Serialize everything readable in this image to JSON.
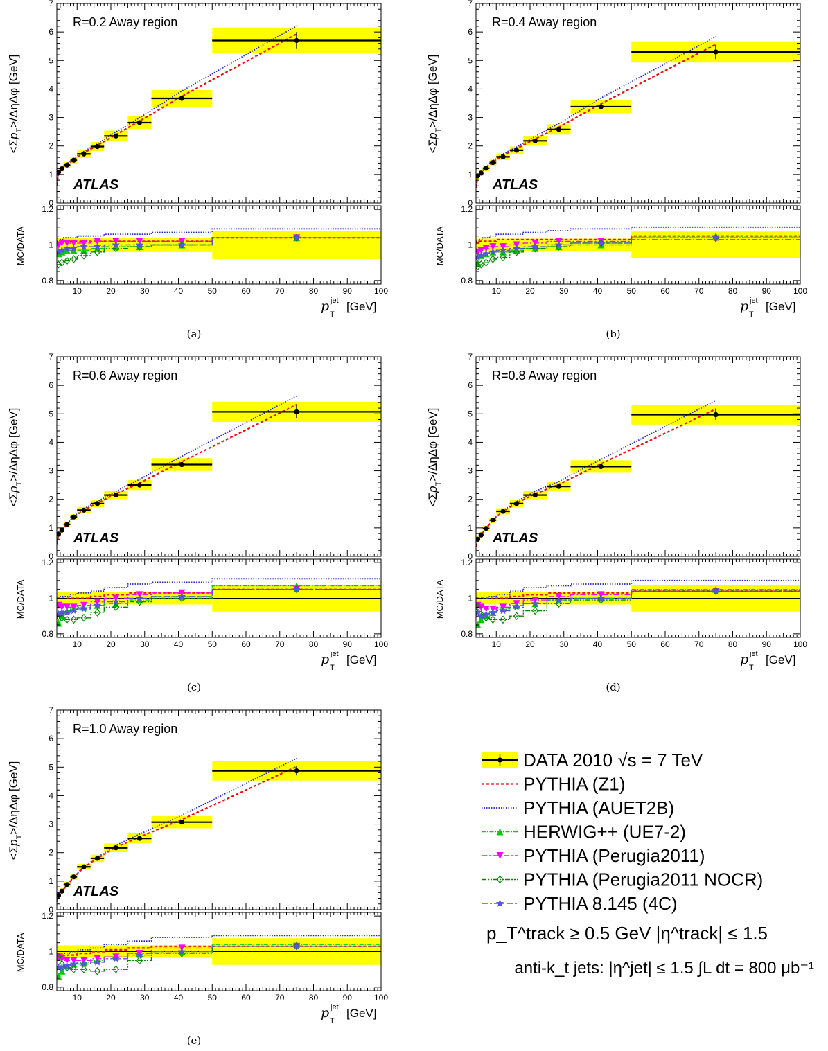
{
  "atlas_label": "ATLAS",
  "main_ylabel": "<Σp_T>/ΔηΔφ [GeV]",
  "ratio_ylabel": "MC/DATA",
  "xlabel": "p_T^jet [GeV]",
  "main_ticks": [
    "0",
    "1",
    "2",
    "3",
    "4",
    "5",
    "6",
    "7"
  ],
  "ratio_ticks": [
    "0.8",
    "1",
    "1.2"
  ],
  "x_ticks": [
    "10",
    "20",
    "30",
    "40",
    "50",
    "60",
    "70",
    "80",
    "90",
    "100"
  ],
  "colors": {
    "data": "#000000",
    "band": "#ffff00",
    "pythia_z1": "#ee1111",
    "pythia_auet2b": "#2222cc",
    "herwig": "#00cc00",
    "perugia2011": "#ff00ff",
    "perugia2011_nocr": "#008800",
    "pythia8_4c": "#5555dd"
  },
  "legend": {
    "entries": [
      {
        "key": "data",
        "label": "DATA  2010  √s = 7 TeV"
      },
      {
        "key": "pythia_z1",
        "label": "PYTHIA (Z1)"
      },
      {
        "key": "pythia_auet2b",
        "label": "PYTHIA (AUET2B)"
      },
      {
        "key": "herwig",
        "label": "HERWIG++ (UE7-2)"
      },
      {
        "key": "perugia2011",
        "label": "PYTHIA (Perugia2011)"
      },
      {
        "key": "perugia2011_nocr",
        "label": "PYTHIA (Perugia2011 NOCR)"
      },
      {
        "key": "pythia8_4c",
        "label": "PYTHIA 8.145 (4C)"
      }
    ],
    "cut1": "p_T^track ≥ 0.5 GeV   |η^track| ≤ 1.5",
    "cut2": "anti-k_t jets: |η^jet| ≤ 1.5   ∫L dt = 800 μb⁻¹"
  },
  "chart_data": [
    {
      "type": "scatter",
      "panel_label": "(a)",
      "title": "R=0.2   Away region",
      "xlim": [
        4,
        100
      ],
      "ylim": [
        0,
        7
      ],
      "ratio_ylim": [
        0.78,
        1.22
      ],
      "bins": [
        [
          4,
          5
        ],
        [
          5,
          6
        ],
        [
          6,
          8
        ],
        [
          8,
          10
        ],
        [
          10,
          14
        ],
        [
          14,
          18
        ],
        [
          18,
          25
        ],
        [
          25,
          32
        ],
        [
          32,
          50
        ],
        [
          50,
          100
        ]
      ],
      "series": [
        {
          "name": "DATA 2010",
          "x": [
            4.5,
            5.5,
            7,
            9,
            12,
            16,
            21.5,
            28.5,
            41,
            75
          ],
          "y": [
            1.08,
            1.2,
            1.33,
            1.5,
            1.72,
            1.98,
            2.35,
            2.82,
            3.67,
            5.7
          ],
          "err": [
            0.05,
            0.05,
            0.05,
            0.05,
            0.05,
            0.05,
            0.05,
            0.05,
            0.06,
            0.3
          ],
          "band_rel": 0.08
        },
        {
          "name": "PYTHIA (Z1)",
          "ratio": [
            1.01,
            1.02,
            1.02,
            1.02,
            1.02,
            1.02,
            1.02,
            1.02,
            1.02,
            1.04
          ]
        },
        {
          "name": "PYTHIA (AUET2B)",
          "ratio": [
            1.02,
            1.03,
            1.04,
            1.04,
            1.05,
            1.05,
            1.06,
            1.06,
            1.07,
            1.09
          ]
        },
        {
          "name": "HERWIG++ (UE7-2)",
          "ratio": [
            0.95,
            0.96,
            0.97,
            0.97,
            0.97,
            0.98,
            0.99,
            0.99,
            1.0,
            1.04
          ]
        },
        {
          "name": "PYTHIA (Perugia2011)",
          "ratio": [
            1.0,
            1.01,
            1.01,
            1.01,
            1.01,
            1.02,
            1.02,
            1.02,
            1.02,
            1.04
          ]
        },
        {
          "name": "PYTHIA (Perugia2011 NOCR)",
          "ratio": [
            0.89,
            0.9,
            0.91,
            0.92,
            0.94,
            0.96,
            0.98,
            0.99,
            1.0,
            1.04
          ]
        },
        {
          "name": "PYTHIA 8.145 (4C)",
          "ratio": [
            0.96,
            0.97,
            0.98,
            0.98,
            0.99,
            0.99,
            1.0,
            1.0,
            1.0,
            1.04
          ]
        }
      ]
    },
    {
      "type": "scatter",
      "panel_label": "(b)",
      "title": "R=0.4   Away region",
      "xlim": [
        4,
        100
      ],
      "ylim": [
        0,
        7
      ],
      "ratio_ylim": [
        0.78,
        1.22
      ],
      "bins": [
        [
          4,
          5
        ],
        [
          5,
          6
        ],
        [
          6,
          8
        ],
        [
          8,
          10
        ],
        [
          10,
          14
        ],
        [
          14,
          18
        ],
        [
          18,
          25
        ],
        [
          25,
          32
        ],
        [
          32,
          50
        ],
        [
          50,
          100
        ]
      ],
      "series": [
        {
          "name": "DATA 2010",
          "x": [
            4.5,
            5.5,
            7,
            9,
            12,
            16,
            21.5,
            28.5,
            41,
            75
          ],
          "y": [
            0.95,
            1.05,
            1.22,
            1.42,
            1.62,
            1.85,
            2.18,
            2.58,
            3.38,
            5.3
          ],
          "err": [
            0.05,
            0.05,
            0.05,
            0.05,
            0.05,
            0.05,
            0.05,
            0.05,
            0.06,
            0.25
          ],
          "band_rel": 0.07
        },
        {
          "name": "PYTHIA (Z1)",
          "ratio": [
            1.01,
            1.02,
            1.02,
            1.02,
            1.03,
            1.03,
            1.03,
            1.03,
            1.03,
            1.05
          ]
        },
        {
          "name": "PYTHIA (AUET2B)",
          "ratio": [
            1.02,
            1.03,
            1.04,
            1.05,
            1.06,
            1.06,
            1.07,
            1.08,
            1.09,
            1.1
          ]
        },
        {
          "name": "HERWIG++ (UE7-2)",
          "ratio": [
            0.9,
            0.94,
            0.95,
            0.96,
            0.96,
            0.97,
            0.98,
            0.99,
            1.0,
            1.05
          ]
        },
        {
          "name": "PYTHIA (Perugia2011)",
          "ratio": [
            0.96,
            0.97,
            0.98,
            0.99,
            0.99,
            1.0,
            1.01,
            1.02,
            1.02,
            1.03
          ]
        },
        {
          "name": "PYTHIA (Perugia2011 NOCR)",
          "ratio": [
            0.88,
            0.89,
            0.9,
            0.92,
            0.93,
            0.96,
            0.98,
            0.99,
            1.01,
            1.04
          ]
        },
        {
          "name": "PYTHIA 8.145 (4C)",
          "ratio": [
            0.93,
            0.94,
            0.95,
            0.96,
            0.97,
            0.98,
            0.99,
            1.0,
            1.01,
            1.04
          ]
        }
      ]
    },
    {
      "type": "scatter",
      "panel_label": "(c)",
      "title": "R=0.6   Away region",
      "xlim": [
        4,
        100
      ],
      "ylim": [
        0,
        7
      ],
      "ratio_ylim": [
        0.78,
        1.22
      ],
      "bins": [
        [
          4,
          5
        ],
        [
          5,
          6
        ],
        [
          6,
          8
        ],
        [
          8,
          10
        ],
        [
          10,
          14
        ],
        [
          14,
          18
        ],
        [
          18,
          25
        ],
        [
          25,
          32
        ],
        [
          32,
          50
        ],
        [
          50,
          100
        ]
      ],
      "series": [
        {
          "name": "DATA 2010",
          "x": [
            4.5,
            5.5,
            7,
            9,
            12,
            16,
            21.5,
            28.5,
            41,
            75
          ],
          "y": [
            0.78,
            0.92,
            1.12,
            1.38,
            1.62,
            1.85,
            2.15,
            2.5,
            3.22,
            5.07
          ],
          "err": [
            0.05,
            0.05,
            0.05,
            0.05,
            0.05,
            0.05,
            0.05,
            0.05,
            0.06,
            0.22
          ],
          "band_rel": 0.07
        },
        {
          "name": "PYTHIA (Z1)",
          "ratio": [
            1.0,
            1.0,
            1.0,
            1.0,
            1.0,
            1.01,
            1.02,
            1.03,
            1.03,
            1.05
          ]
        },
        {
          "name": "PYTHIA (AUET2B)",
          "ratio": [
            1.0,
            1.01,
            1.01,
            1.02,
            1.03,
            1.04,
            1.06,
            1.08,
            1.09,
            1.11
          ]
        },
        {
          "name": "HERWIG++ (UE7-2)",
          "ratio": [
            0.86,
            0.9,
            0.93,
            0.94,
            0.95,
            0.96,
            0.97,
            0.99,
            1.01,
            1.07
          ]
        },
        {
          "name": "PYTHIA (Perugia2011)",
          "ratio": [
            0.96,
            0.95,
            0.95,
            0.95,
            0.96,
            0.98,
            1.0,
            1.02,
            1.03,
            1.05
          ]
        },
        {
          "name": "PYTHIA (Perugia2011 NOCR)",
          "ratio": [
            0.9,
            0.89,
            0.88,
            0.88,
            0.89,
            0.92,
            0.95,
            0.98,
            1.0,
            1.05
          ]
        },
        {
          "name": "PYTHIA 8.145 (4C)",
          "ratio": [
            0.91,
            0.92,
            0.92,
            0.93,
            0.94,
            0.96,
            0.98,
            1.0,
            1.01,
            1.05
          ]
        }
      ]
    },
    {
      "type": "scatter",
      "panel_label": "(d)",
      "title": "R=0.8   Away region",
      "xlim": [
        4,
        100
      ],
      "ylim": [
        0,
        7
      ],
      "ratio_ylim": [
        0.78,
        1.22
      ],
      "bins": [
        [
          4,
          5
        ],
        [
          5,
          6
        ],
        [
          6,
          8
        ],
        [
          8,
          10
        ],
        [
          10,
          14
        ],
        [
          14,
          18
        ],
        [
          18,
          25
        ],
        [
          25,
          32
        ],
        [
          32,
          50
        ],
        [
          50,
          100
        ]
      ],
      "series": [
        {
          "name": "DATA 2010",
          "x": [
            4.5,
            5.5,
            7,
            9,
            12,
            16,
            21.5,
            28.5,
            41,
            75
          ],
          "y": [
            0.6,
            0.75,
            0.98,
            1.27,
            1.58,
            1.85,
            2.15,
            2.45,
            3.15,
            4.97
          ],
          "err": [
            0.05,
            0.05,
            0.05,
            0.05,
            0.05,
            0.05,
            0.05,
            0.05,
            0.06,
            0.18
          ],
          "band_rel": 0.07
        },
        {
          "name": "PYTHIA (Z1)",
          "ratio": [
            1.0,
            1.0,
            1.0,
            1.0,
            1.0,
            1.01,
            1.02,
            1.03,
            1.03,
            1.04
          ]
        },
        {
          "name": "PYTHIA (AUET2B)",
          "ratio": [
            1.0,
            1.0,
            1.0,
            1.01,
            1.02,
            1.04,
            1.06,
            1.07,
            1.08,
            1.1
          ]
        },
        {
          "name": "HERWIG++ (UE7-2)",
          "ratio": [
            0.85,
            0.88,
            0.9,
            0.92,
            0.94,
            0.96,
            0.97,
            0.99,
            1.0,
            1.05
          ]
        },
        {
          "name": "PYTHIA (Perugia2011)",
          "ratio": [
            0.96,
            0.95,
            0.94,
            0.94,
            0.95,
            0.97,
            0.99,
            1.01,
            1.02,
            1.04
          ]
        },
        {
          "name": "PYTHIA (Perugia2011 NOCR)",
          "ratio": [
            0.95,
            0.91,
            0.89,
            0.88,
            0.88,
            0.9,
            0.93,
            0.97,
            0.99,
            1.04
          ]
        },
        {
          "name": "PYTHIA 8.145 (4C)",
          "ratio": [
            0.92,
            0.9,
            0.91,
            0.92,
            0.93,
            0.95,
            0.97,
            0.99,
            1.0,
            1.04
          ]
        }
      ]
    },
    {
      "type": "scatter",
      "panel_label": "(e)",
      "title": "R=1.0   Away region",
      "xlim": [
        4,
        100
      ],
      "ylim": [
        0,
        7
      ],
      "ratio_ylim": [
        0.78,
        1.22
      ],
      "bins": [
        [
          4,
          5
        ],
        [
          5,
          6
        ],
        [
          6,
          8
        ],
        [
          8,
          10
        ],
        [
          10,
          14
        ],
        [
          14,
          18
        ],
        [
          18,
          25
        ],
        [
          25,
          32
        ],
        [
          32,
          50
        ],
        [
          50,
          100
        ]
      ],
      "series": [
        {
          "name": "DATA 2010",
          "x": [
            4.5,
            5.5,
            7,
            9,
            12,
            16,
            21.5,
            28.5,
            41,
            75
          ],
          "y": [
            0.5,
            0.65,
            0.88,
            1.15,
            1.5,
            1.8,
            2.17,
            2.5,
            3.07,
            4.87
          ],
          "err": [
            0.05,
            0.05,
            0.05,
            0.05,
            0.05,
            0.05,
            0.05,
            0.05,
            0.06,
            0.16
          ],
          "band_rel": 0.07
        },
        {
          "name": "PYTHIA (Z1)",
          "ratio": [
            0.98,
            0.98,
            0.98,
            0.98,
            0.99,
            1.0,
            1.01,
            1.02,
            1.03,
            1.03
          ]
        },
        {
          "name": "PYTHIA (AUET2B)",
          "ratio": [
            0.99,
            0.99,
            0.99,
            1.0,
            1.01,
            1.02,
            1.04,
            1.06,
            1.08,
            1.09
          ]
        },
        {
          "name": "HERWIG++ (UE7-2)",
          "ratio": [
            0.86,
            0.89,
            0.92,
            0.93,
            0.94,
            0.95,
            0.97,
            0.99,
            1.0,
            1.04
          ]
        },
        {
          "name": "PYTHIA (Perugia2011)",
          "ratio": [
            0.97,
            0.96,
            0.95,
            0.95,
            0.95,
            0.96,
            0.97,
            0.99,
            1.02,
            1.03
          ]
        },
        {
          "name": "PYTHIA (Perugia2011 NOCR)",
          "ratio": [
            0.97,
            0.93,
            0.91,
            0.9,
            0.9,
            0.89,
            0.9,
            0.95,
            0.99,
            1.03
          ]
        },
        {
          "name": "PYTHIA 8.145 (4C)",
          "ratio": [
            0.91,
            0.91,
            0.92,
            0.93,
            0.93,
            0.94,
            0.96,
            0.98,
            1.0,
            1.03
          ]
        }
      ]
    }
  ]
}
